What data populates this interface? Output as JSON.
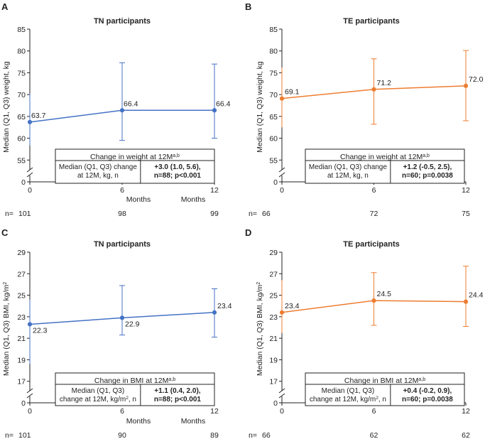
{
  "colors": {
    "blue": "#4472C4",
    "orange": "#ED7D31",
    "axis": "#222222"
  },
  "chart_data": [
    {
      "panel": "A",
      "type": "line",
      "title": "TN participants",
      "ylabel": "Median (Q1, Q3) weight, kg",
      "xlabel": "Months",
      "yticks": [
        55,
        60,
        65,
        70,
        75,
        80,
        85
      ],
      "ylim": [
        50,
        85
      ],
      "axis_break": true,
      "x": [
        0,
        6,
        12
      ],
      "x_tick_labels": [
        "0",
        "6",
        "12"
      ],
      "values": [
        63.7,
        66.4,
        66.4
      ],
      "value_labels": [
        "63.7",
        "66.4",
        "66.4"
      ],
      "q1": [
        58.3,
        59.5,
        60.0
      ],
      "q3": [
        70.2,
        77.3,
        77.0
      ],
      "color": "blue",
      "n_prefix": "n=",
      "n_values": [
        "101",
        "98",
        "99"
      ],
      "box": {
        "heading": "Change in weight at 12M",
        "heading_sup": "a,b",
        "label_line1": "Median (Q1, Q3) change",
        "label_line2": "at 12M, kg, n",
        "value_line1": "+3.0 (1.0, 5.6),",
        "value_line2": "n=88; p<0.001"
      }
    },
    {
      "panel": "B",
      "type": "line",
      "title": "TE participants",
      "ylabel": "Median (Q1, Q3) weight, kg",
      "xlabel": "Months",
      "yticks": [
        55,
        60,
        65,
        70,
        75,
        80,
        85
      ],
      "ylim": [
        50,
        85
      ],
      "axis_break": true,
      "x": [
        0,
        6,
        12
      ],
      "x_tick_labels": [
        "0",
        "6",
        "12"
      ],
      "values": [
        69.1,
        71.2,
        72.0
      ],
      "value_labels": [
        "69.1",
        "71.2",
        "72.0"
      ],
      "q1": [
        62.5,
        63.2,
        64.0
      ],
      "q3": [
        76.2,
        78.2,
        80.1
      ],
      "color": "orange",
      "n_prefix": "n=",
      "n_values": [
        "66",
        "72",
        "75"
      ],
      "box": {
        "heading": "Change in weight at 12M",
        "heading_sup": "a,b",
        "label_line1": "Median (Q1, Q3) change",
        "label_line2": "at 12M, kg, n",
        "value_line1": "+1.2 (-0.5, 2.5),",
        "value_line2": "n=60; p=0.0038"
      }
    },
    {
      "panel": "C",
      "type": "line",
      "title": "TN participants",
      "ylabel": "Median (Q1, Q3) BMI, kg/m",
      "ylabel_sup": "2",
      "xlabel": "Months",
      "yticks": [
        17,
        19,
        21,
        23,
        25,
        27,
        29
      ],
      "ylim": [
        15,
        29
      ],
      "axis_break": true,
      "x": [
        0,
        6,
        12
      ],
      "x_tick_labels": [
        "0",
        "6",
        "12"
      ],
      "values": [
        22.3,
        22.9,
        23.4
      ],
      "value_labels": [
        "22.3",
        "22.9",
        "23.4"
      ],
      "q1": [
        18.6,
        21.3,
        21.1
      ],
      "q3": [
        24.6,
        25.9,
        25.6
      ],
      "color": "blue",
      "n_prefix": "n=",
      "n_values": [
        "101",
        "90",
        "89"
      ],
      "box": {
        "heading": "Change in BMI at 12M",
        "heading_sup": "a,b",
        "label_line1": "Median (Q1, Q3)",
        "label_line2": "change at 12M, kg/m",
        "label_line2_sup": "2",
        "label_line2_tail": ", n",
        "value_line1": "+1.1 (0.4, 2.0),",
        "value_line2": "n=88; p<0.001"
      }
    },
    {
      "panel": "D",
      "type": "line",
      "title": "TE participants",
      "ylabel": "Median (Q1, Q3) BMI, kg/m",
      "ylabel_sup": "2",
      "xlabel": "Months",
      "yticks": [
        17,
        19,
        21,
        23,
        25,
        27,
        29
      ],
      "ylim": [
        15,
        29
      ],
      "axis_break": true,
      "x": [
        0,
        6,
        12
      ],
      "x_tick_labels": [
        "0",
        "6",
        "12"
      ],
      "values": [
        23.4,
        24.5,
        24.4
      ],
      "value_labels": [
        "23.4",
        "24.5",
        "24.4"
      ],
      "q1": [
        21.5,
        22.2,
        22.1
      ],
      "q3": [
        26.4,
        27.1,
        27.7
      ],
      "color": "orange",
      "n_prefix": "n=",
      "n_values": [
        "66",
        "62",
        "62"
      ],
      "box": {
        "heading": "Change in BMI at 12M",
        "heading_sup": "a,b",
        "label_line1": "Median (Q1, Q3)",
        "label_line2": "change at 12M, kg/m",
        "label_line2_sup": "2",
        "label_line2_tail": ", n",
        "value_line1": "+0.4 (-0.2, 0.9),",
        "value_line2": "n=60; p=0.0038"
      }
    }
  ]
}
